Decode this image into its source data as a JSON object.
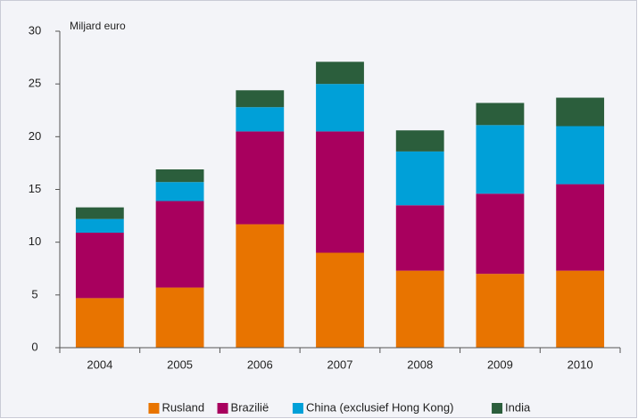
{
  "chart_data": {
    "type": "stacked_bar",
    "y_axis_label": "Miljard euro",
    "categories": [
      "2004",
      "2005",
      "2006",
      "2007",
      "2008",
      "2009",
      "2010"
    ],
    "series": [
      {
        "name": "Rusland",
        "color": "#e87400",
        "values": [
          4.7,
          5.7,
          11.7,
          9.0,
          7.3,
          7.0,
          7.3
        ]
      },
      {
        "name": "Brazilië",
        "color": "#a8005e",
        "values": [
          6.2,
          8.2,
          8.8,
          11.5,
          6.2,
          7.6,
          8.2
        ]
      },
      {
        "name": "China (exclusief Hong Kong)",
        "color": "#00a0d8",
        "values": [
          1.3,
          1.8,
          2.3,
          4.5,
          5.1,
          6.5,
          5.5
        ]
      },
      {
        "name": "India",
        "color": "#2b5e3c",
        "values": [
          1.1,
          1.2,
          1.6,
          2.1,
          2.0,
          2.1,
          2.7
        ]
      }
    ],
    "ylim": [
      0,
      30
    ],
    "yticks": [
      0,
      5,
      10,
      15,
      20,
      25,
      30
    ],
    "grid": false,
    "legend": "bottom"
  }
}
